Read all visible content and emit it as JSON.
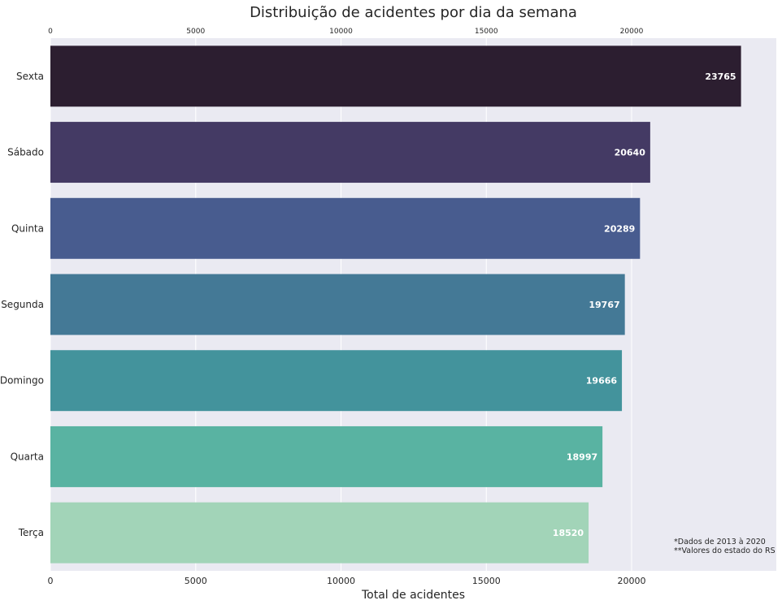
{
  "chart_data": {
    "type": "bar",
    "orientation": "horizontal",
    "title": "Distribuição de acidentes por dia da semana",
    "xlabel": "Total de acidentes",
    "ylabel": "",
    "xlim": [
      0,
      25000
    ],
    "xticks": [
      0,
      5000,
      10000,
      15000,
      20000
    ],
    "grid": true,
    "categories": [
      "Sexta",
      "Sábado",
      "Quinta",
      "Segunda",
      "Domingo",
      "Quarta",
      "Terça"
    ],
    "values": [
      23765,
      20640,
      20289,
      19767,
      19666,
      18997,
      18520
    ],
    "colors": [
      "#2c1e30",
      "#443a64",
      "#485c8f",
      "#447996",
      "#43939c",
      "#59b3a2",
      "#a2d4b8"
    ],
    "annotations": [
      "*Dados de 2013 à 2020",
      "**Valores do estado do RS"
    ]
  }
}
